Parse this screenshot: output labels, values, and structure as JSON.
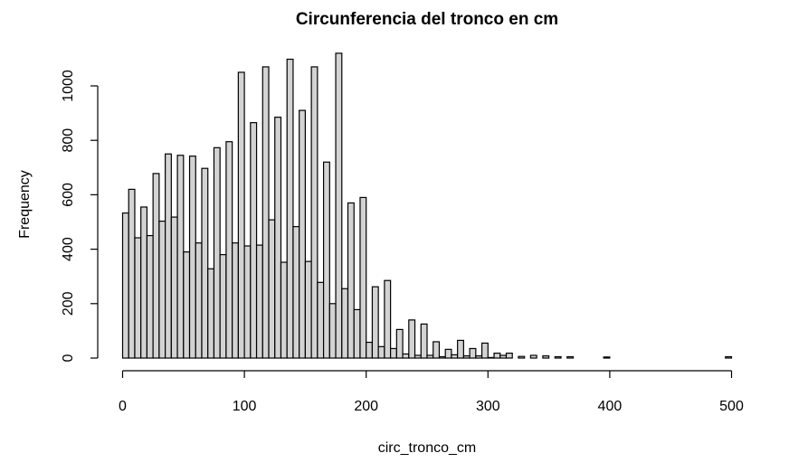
{
  "chart_data": {
    "type": "bar",
    "title": "Circunferencia del tronco en cm",
    "xlabel": "circ_tronco_cm",
    "ylabel": "Frequency",
    "xlim": [
      0,
      500
    ],
    "ylim": [
      0,
      1000
    ],
    "bin_width": 5,
    "x_ticks": [
      0,
      100,
      200,
      300,
      400,
      500
    ],
    "y_ticks": [
      0,
      200,
      400,
      600,
      800,
      1000
    ],
    "grid": false,
    "bar_fill": "#d3d3d3",
    "bar_stroke": "#000000",
    "values": [
      533,
      620,
      442,
      555,
      450,
      678,
      503,
      750,
      518,
      745,
      390,
      742,
      423,
      697,
      328,
      773,
      380,
      795,
      423,
      1050,
      412,
      865,
      415,
      1070,
      508,
      885,
      352,
      1098,
      483,
      910,
      355,
      1070,
      278,
      720,
      200,
      1120,
      255,
      570,
      178,
      590,
      58,
      262,
      42,
      285,
      35,
      105,
      15,
      140,
      10,
      125,
      10,
      60,
      5,
      32,
      12,
      65,
      8,
      35,
      8,
      55,
      2,
      18,
      10,
      18,
      0,
      6,
      0,
      10,
      0,
      8,
      0,
      5,
      0,
      5,
      0,
      0,
      0,
      0,
      0,
      4,
      0,
      0,
      0,
      0,
      0,
      0,
      0,
      0,
      0,
      0,
      0,
      0,
      0,
      0,
      0,
      0,
      0,
      0,
      0,
      5
    ]
  }
}
